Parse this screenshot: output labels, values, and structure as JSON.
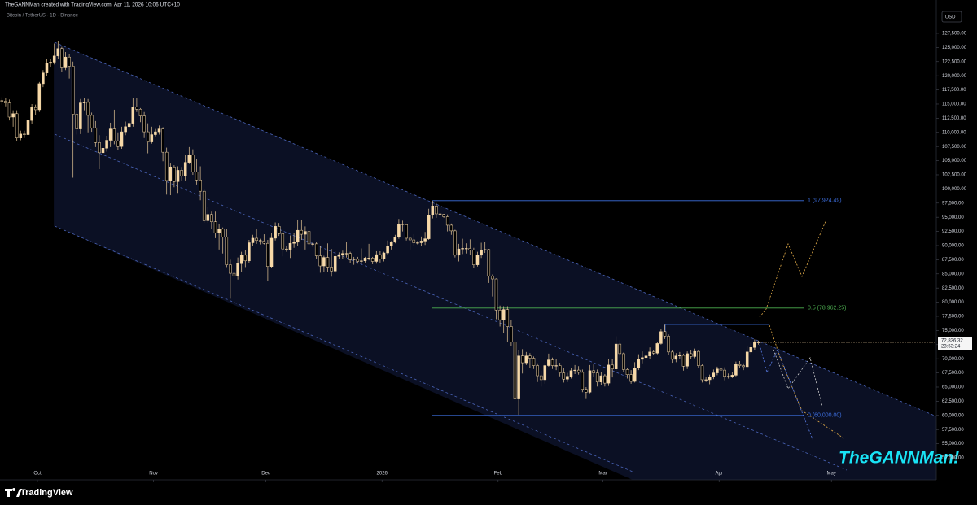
{
  "chart_data": {
    "type": "candlestick",
    "header": "TheGANNMan created with TradingView.com, Apr 11, 2026 10:06 UTC+10",
    "symbol": "Bitcoin / TetherUS · 1D · Binance",
    "currency": "USDT",
    "watermark": "TheGANNMan!",
    "brand": "TradingView",
    "last_price_label": "72,836.32",
    "countdown": "23:53:24",
    "up_color": "#f7d9a8",
    "down_color": "#000000",
    "border_color": "#f7d9a8",
    "wick_color": "#e8c896",
    "grid": false,
    "xlim": [
      0,
      250
    ],
    "xticks": [
      {
        "value": 10,
        "label": "Oct"
      },
      {
        "value": 41,
        "label": "Nov"
      },
      {
        "value": 71,
        "label": "Dec"
      },
      {
        "value": 102,
        "label": "2026"
      },
      {
        "value": 133,
        "label": "Feb"
      },
      {
        "value": 161,
        "label": "Mar"
      },
      {
        "value": 192,
        "label": "Apr"
      },
      {
        "value": 222,
        "label": "May"
      }
    ],
    "ylim": [
      48620,
      131950
    ],
    "yticks": [
      {
        "value": 52500,
        "label": "52,500.00"
      },
      {
        "value": 55000,
        "label": "55,000.00"
      },
      {
        "value": 57500,
        "label": "57,500.00"
      },
      {
        "value": 60000,
        "label": "60,000.00"
      },
      {
        "value": 62500,
        "label": "62,500.00"
      },
      {
        "value": 65000,
        "label": "65,000.00"
      },
      {
        "value": 67500,
        "label": "67,500.00"
      },
      {
        "value": 70000,
        "label": "70,000.00"
      },
      {
        "value": 72500,
        "label": "72,500.00"
      },
      {
        "value": 75000,
        "label": "75,000.00"
      },
      {
        "value": 77500,
        "label": "77,500.00"
      },
      {
        "value": 80000,
        "label": "80,000.00"
      },
      {
        "value": 82500,
        "label": "82,500.00"
      },
      {
        "value": 85000,
        "label": "85,000.00"
      },
      {
        "value": 87500,
        "label": "87,500.00"
      },
      {
        "value": 90000,
        "label": "90,000.00"
      },
      {
        "value": 92500,
        "label": "92,500.00"
      },
      {
        "value": 95000,
        "label": "95,000.00"
      },
      {
        "value": 97500,
        "label": "97,500.00"
      },
      {
        "value": 100000,
        "label": "100,000.00"
      },
      {
        "value": 102500,
        "label": "102,500.00"
      },
      {
        "value": 105000,
        "label": "105,000.00"
      },
      {
        "value": 107500,
        "label": "107,500.00"
      },
      {
        "value": 110000,
        "label": "110,000.00"
      },
      {
        "value": 112500,
        "label": "112,500.00"
      },
      {
        "value": 115000,
        "label": "115,000.00"
      },
      {
        "value": 117500,
        "label": "117,500.00"
      },
      {
        "value": 120000,
        "label": "120,000.00"
      },
      {
        "value": 122500,
        "label": "122,500.00"
      },
      {
        "value": 125000,
        "label": "125,000.00"
      },
      {
        "value": 127500,
        "label": "127,500.00"
      }
    ],
    "fib_levels": [
      {
        "label": "1 (97,924.49)",
        "value": 97924.49,
        "color": "#3d6fe0"
      },
      {
        "label": "0.5 (78,962.25)",
        "value": 78962.25,
        "color": "#4caf50"
      },
      {
        "label": "0 (60,000.00)",
        "value": 60000,
        "color": "#3d6fe0"
      }
    ],
    "open": [
      115600,
      115500,
      115200,
      112700,
      113300,
      109000,
      109700,
      109600,
      112100,
      114400,
      114000,
      118600,
      120500,
      122200,
      122400,
      123500,
      124800,
      121400,
      123300,
      121700,
      113200,
      110600,
      115200,
      115300,
      113000,
      110800,
      108200,
      106400,
      107200,
      108600,
      110600,
      108500,
      107500,
      110100,
      111000,
      111600,
      114500,
      114100,
      112900,
      110100,
      108300,
      109600,
      110100,
      110600,
      106500,
      101500,
      103900,
      101300,
      103300,
      102300,
      104700,
      106000,
      103000,
      101600,
      99600,
      94400,
      95500,
      94200,
      92200,
      92900,
      91500,
      86600,
      85100,
      84600,
      86800,
      88300,
      87300,
      90500,
      91300,
      90900,
      90800,
      90400,
      86300,
      91300,
      93400,
      92100,
      89400,
      89300,
      90400,
      90600,
      92700,
      92000,
      92500,
      90300,
      90300,
      88200,
      86400,
      87900,
      86200,
      85500,
      88100,
      88300,
      88600,
      88600,
      87500,
      87600,
      87200,
      87300,
      87800,
      87800,
      87200,
      88400,
      87600,
      88700,
      89900,
      90600,
      91500,
      93800,
      93700,
      91300,
      91000,
      90500,
      90500,
      90800,
      91200,
      95400,
      97000,
      95600,
      95500,
      95100,
      93600,
      92600,
      88300,
      89400,
      89500,
      89500,
      89200,
      86600,
      88300,
      89200,
      89300,
      84600,
      84100,
      78600,
      76900,
      78700,
      75700,
      73000,
      62900,
      70500,
      69300,
      70500,
      70100,
      68800,
      67000,
      66300,
      68800,
      69800,
      68800,
      68800,
      67500,
      66400,
      66900,
      67900,
      68000,
      67600,
      64600,
      64100,
      67900,
      67500,
      65900,
      67000,
      65700,
      68900,
      68200,
      72600,
      70900,
      68100,
      67200,
      66000,
      68400,
      69900,
      70200,
      70500,
      71200,
      71000,
      72700,
      74800,
      74000,
      71200,
      69900,
      70500,
      70600,
      68700,
      70900,
      70400,
      71300,
      68800,
      66300,
      66300,
      66800,
      67500,
      68200,
      68000,
      66900,
      66900,
      67100,
      69000,
      68800,
      68600,
      71200,
      72000,
      72900
    ],
    "high": [
      116200,
      116100,
      115800,
      113900,
      113900,
      110300,
      110300,
      112700,
      115000,
      114900,
      118900,
      121000,
      123000,
      122900,
      125700,
      126200,
      125100,
      124200,
      123800,
      122500,
      113500,
      115900,
      116000,
      115900,
      113500,
      112000,
      109500,
      107600,
      109400,
      111700,
      114000,
      110000,
      111000,
      111900,
      112000,
      116000,
      116100,
      114300,
      113600,
      111600,
      111000,
      110600,
      111200,
      110900,
      107300,
      104500,
      104200,
      104000,
      103900,
      106000,
      107400,
      107000,
      105300,
      104000,
      100000,
      96800,
      96000,
      96000,
      93800,
      93200,
      92900,
      87500,
      85600,
      87900,
      88900,
      89200,
      91000,
      91900,
      92900,
      91200,
      92000,
      91000,
      92300,
      94100,
      94000,
      92300,
      90000,
      91800,
      92300,
      94600,
      94500,
      93400,
      92800,
      90600,
      90600,
      90000,
      88200,
      90400,
      89400,
      89000,
      88800,
      89100,
      90600,
      88900,
      88000,
      88000,
      89500,
      88000,
      90300,
      88000,
      89000,
      89000,
      88900,
      90900,
      90800,
      91900,
      94700,
      94400,
      93800,
      91600,
      92000,
      90800,
      91600,
      92400,
      96500,
      97900,
      97500,
      96000,
      95600,
      95500,
      93900,
      92800,
      90300,
      91200,
      90400,
      91100,
      89600,
      88900,
      90500,
      90600,
      89400,
      84900,
      84200,
      79400,
      79300,
      79300,
      76900,
      73400,
      71500,
      71700,
      71200,
      71000,
      70400,
      69200,
      67900,
      69200,
      70900,
      70200,
      70000,
      69300,
      68400,
      67500,
      68300,
      68900,
      68700,
      68100,
      65000,
      68900,
      69000,
      68100,
      67600,
      67300,
      70000,
      69900,
      74000,
      73300,
      71100,
      68400,
      68000,
      69400,
      70800,
      71300,
      71000,
      72000,
      71600,
      73000,
      75200,
      76000,
      74300,
      71600,
      71000,
      71200,
      70900,
      71300,
      71600,
      71800,
      71500,
      69000,
      66800,
      67200,
      68100,
      68600,
      69200,
      68500,
      67400,
      67600,
      69500,
      69600,
      69200,
      72200,
      72900,
      73400,
      73200
    ],
    "low": [
      114900,
      114600,
      112100,
      111000,
      108400,
      108600,
      109000,
      109000,
      111500,
      113000,
      113600,
      118000,
      119900,
      121600,
      122000,
      123000,
      120600,
      121000,
      119500,
      102000,
      109600,
      109700,
      113900,
      110000,
      110100,
      107400,
      103500,
      106000,
      106600,
      107400,
      107900,
      106900,
      107100,
      109500,
      110700,
      111000,
      113600,
      111800,
      109000,
      106300,
      108000,
      109300,
      109600,
      104900,
      99000,
      98900,
      100300,
      99300,
      101400,
      101500,
      104400,
      102500,
      100800,
      98000,
      94000,
      94000,
      93000,
      91300,
      89300,
      88600,
      86200,
      80600,
      83500,
      84000,
      85300,
      86200,
      86900,
      90000,
      90300,
      90200,
      90200,
      83800,
      86100,
      90900,
      91700,
      88100,
      88900,
      87800,
      89600,
      89900,
      91000,
      89300,
      89600,
      89800,
      87600,
      85200,
      85300,
      85400,
      84500,
      85100,
      87600,
      87700,
      87900,
      86900,
      86600,
      86800,
      86700,
      87000,
      87400,
      86700,
      86800,
      87000,
      87200,
      88300,
      89300,
      90400,
      91200,
      92500,
      90900,
      89300,
      90000,
      90200,
      89900,
      90100,
      91000,
      94800,
      94900,
      94700,
      94900,
      92500,
      91900,
      87900,
      87200,
      88500,
      88600,
      88400,
      86000,
      86300,
      87800,
      88700,
      83400,
      81000,
      77000,
      75700,
      74600,
      72900,
      72200,
      62400,
      60100,
      67400,
      68900,
      68300,
      68200,
      65900,
      65100,
      65600,
      68600,
      68200,
      68000,
      66900,
      65800,
      65900,
      66500,
      67300,
      67200,
      64100,
      62900,
      63900,
      66800,
      65100,
      65400,
      65100,
      65200,
      66700,
      67900,
      70200,
      67600,
      66500,
      65600,
      65800,
      68000,
      69200,
      69500,
      70000,
      70600,
      70800,
      72500,
      73500,
      70600,
      69300,
      69400,
      69900,
      67900,
      68200,
      70000,
      70100,
      68300,
      65800,
      65900,
      65500,
      66400,
      67100,
      67500,
      66200,
      66500,
      66600,
      66900,
      68300,
      68000,
      68400,
      70800,
      71600,
      72500
    ],
    "close": [
      115500,
      115200,
      112700,
      113300,
      109000,
      109700,
      109600,
      112100,
      114400,
      114000,
      118600,
      120500,
      122200,
      122400,
      123500,
      124800,
      121400,
      123300,
      121700,
      113200,
      110600,
      115200,
      115300,
      113000,
      110800,
      108200,
      106400,
      107200,
      108600,
      110600,
      108500,
      107500,
      110100,
      111000,
      111600,
      114500,
      114100,
      112900,
      110100,
      108300,
      109600,
      110100,
      110600,
      106500,
      101500,
      103900,
      101300,
      103300,
      102300,
      104700,
      106000,
      103000,
      101600,
      99600,
      94400,
      95500,
      94200,
      92200,
      92900,
      91500,
      86600,
      85100,
      84600,
      86800,
      88300,
      87300,
      90500,
      91300,
      90900,
      90800,
      90400,
      86300,
      91300,
      93400,
      92100,
      89400,
      89300,
      90400,
      90600,
      92700,
      92000,
      92500,
      90300,
      90300,
      88200,
      86400,
      87900,
      86200,
      85500,
      88100,
      88300,
      88600,
      88600,
      87500,
      87600,
      87200,
      87300,
      87800,
      87800,
      87200,
      88400,
      87600,
      88700,
      89900,
      90600,
      91500,
      93800,
      93700,
      91300,
      91000,
      90500,
      90500,
      90800,
      91200,
      95400,
      97000,
      95600,
      95500,
      95100,
      93600,
      92600,
      88300,
      89400,
      89500,
      89500,
      89200,
      86600,
      88300,
      89200,
      89300,
      84600,
      84100,
      78600,
      76900,
      78700,
      75700,
      73000,
      62900,
      70500,
      69300,
      70500,
      70100,
      68800,
      67000,
      66300,
      68800,
      69800,
      68800,
      68800,
      67500,
      66400,
      66900,
      67900,
      68000,
      67600,
      64600,
      64100,
      67900,
      67500,
      65900,
      67000,
      65700,
      68900,
      68200,
      72600,
      70900,
      68100,
      67200,
      66000,
      68400,
      69900,
      70200,
      70500,
      71200,
      71000,
      72700,
      74800,
      74000,
      71200,
      69900,
      70500,
      70600,
      68700,
      70900,
      70400,
      71300,
      68800,
      66300,
      66300,
      66800,
      67500,
      68200,
      68000,
      66900,
      66900,
      67100,
      69000,
      68800,
      68600,
      71200,
      72000,
      72900,
      72836.32
    ]
  }
}
